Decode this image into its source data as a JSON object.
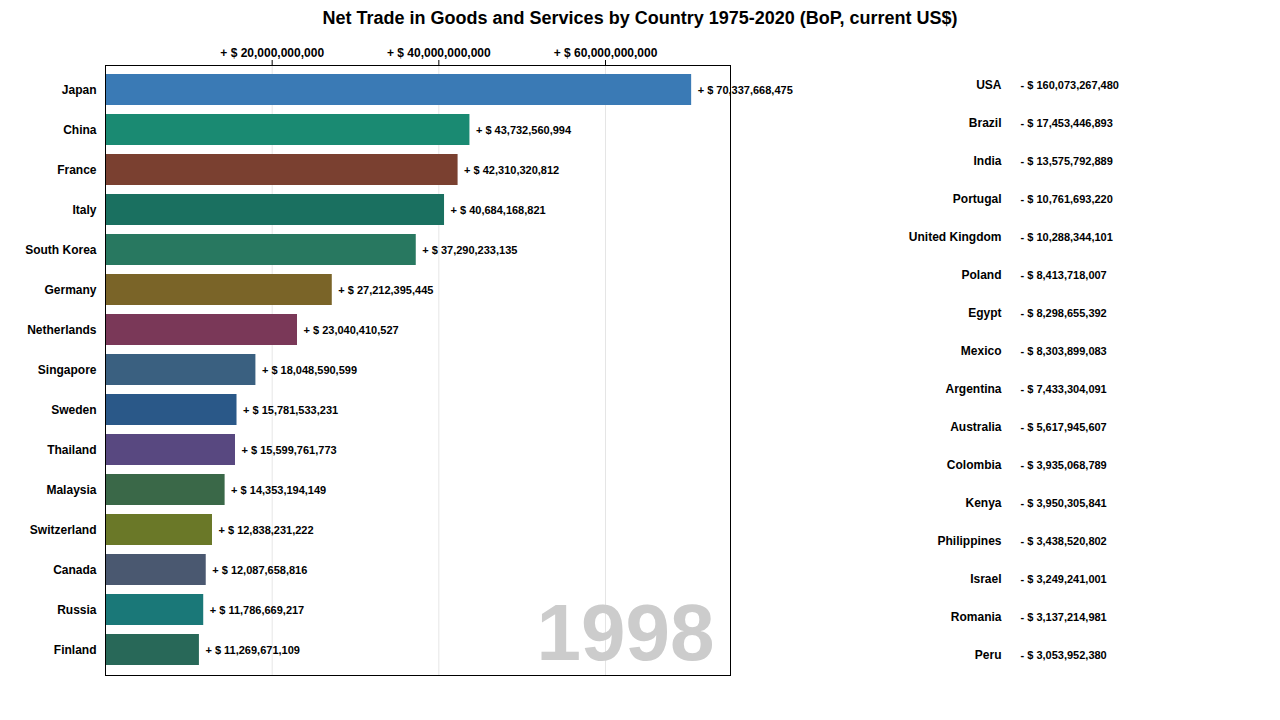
{
  "chart_data": [
    {
      "type": "bar",
      "title": "Net Trade in Goods and Services by Country 1975-2020 (BoP, current US$)",
      "orientation": "horizontal",
      "categories": [
        "Japan",
        "China",
        "France",
        "Italy",
        "South Korea",
        "Germany",
        "Netherlands",
        "Singapore",
        "Sweden",
        "Thailand",
        "Malaysia",
        "Switzerland",
        "Canada",
        "Russia",
        "Finland"
      ],
      "values": [
        70337668475,
        43732560994,
        42310320812,
        40684168821,
        37290233135,
        27212395445,
        23040410527,
        18048590599,
        15781533231,
        15599761773,
        14353194149,
        12838231222,
        12087658816,
        11786669217,
        11269671109
      ],
      "value_labels": [
        "+ $ 70,337,668,475",
        "+ $ 43,732,560,994",
        "+ $ 42,310,320,812",
        "+ $ 40,684,168,821",
        "+ $ 37,290,233,135",
        "+ $ 27,212,395,445",
        "+ $ 23,040,410,527",
        "+ $ 18,048,590,599",
        "+ $ 15,781,533,231",
        "+ $ 15,599,761,773",
        "+ $ 14,353,194,149",
        "+ $ 12,838,231,222",
        "+ $ 12,087,658,816",
        "+ $ 11,786,669,217",
        "+ $ 11,269,671,109"
      ],
      "colors": [
        "#3a7ab5",
        "#1a8a72",
        "#7a4030",
        "#1a7060",
        "#287860",
        "#7a6428",
        "#7a3858",
        "#3a6080",
        "#2a5888",
        "#584880",
        "#3a6848",
        "#6a7828",
        "#4a5870",
        "#1a7878",
        "#286858"
      ],
      "xlim": [
        0,
        75000000000
      ],
      "xticks": [
        {
          "value": 20000000000,
          "label": "+ $ 20,000,000,000"
        },
        {
          "value": 40000000000,
          "label": "+ $ 40,000,000,000"
        },
        {
          "value": 60000000000,
          "label": "+ $ 60,000,000,000"
        }
      ],
      "grid": true,
      "data_labels": true,
      "annotations": [
        "1998"
      ]
    },
    {
      "type": "table",
      "categories": [
        "USA",
        "Brazil",
        "India",
        "Portugal",
        "United Kingdom",
        "Poland",
        "Egypt",
        "Mexico",
        "Argentina",
        "Australia",
        "Colombia",
        "Kenya",
        "Philippines",
        "Israel",
        "Romania",
        "Peru"
      ],
      "values": [
        -160073267480,
        -17453446893,
        -13575792889,
        -10761693220,
        -10288344101,
        -8413718007,
        -8298655392,
        -8303899083,
        -7433304091,
        -5617945607,
        -3935068789,
        -3950305841,
        -3438520802,
        -3249241001,
        -3137214981,
        -3053952380
      ],
      "value_labels": [
        "- $ 160,073,267,480",
        "- $ 17,453,446,893",
        "- $ 13,575,792,889",
        "- $ 10,761,693,220",
        "- $ 10,288,344,101",
        "- $ 8,413,718,007",
        "- $ 8,298,655,392",
        "- $ 8,303,899,083",
        "- $ 7,433,304,091",
        "- $ 5,617,945,607",
        "- $ 3,935,068,789",
        "- $ 3,950,305,841",
        "- $ 3,438,520,802",
        "- $ 3,249,241,001",
        "- $ 3,137,214,981",
        "- $ 3,053,952,380"
      ],
      "data_labels": true
    }
  ]
}
